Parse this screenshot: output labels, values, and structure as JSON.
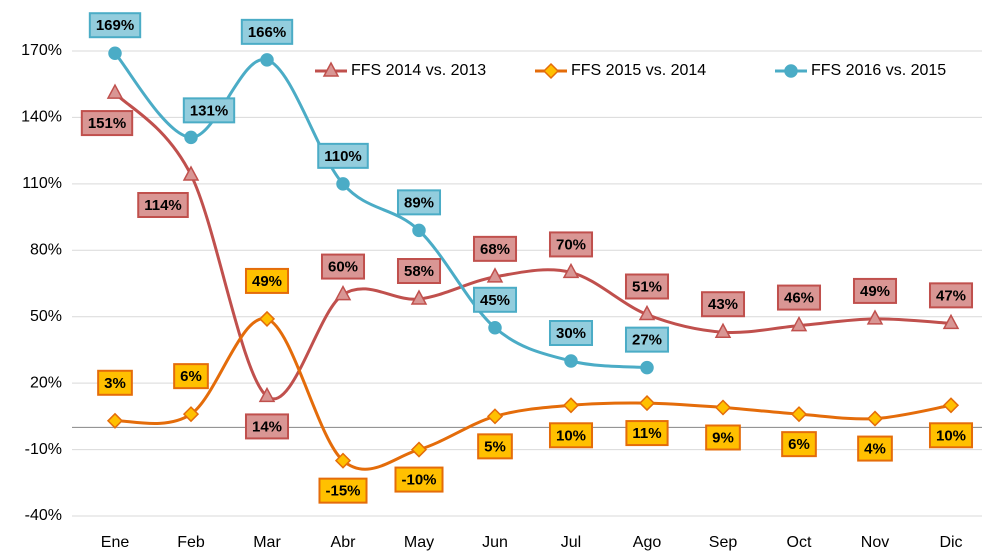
{
  "chart_data": {
    "type": "line",
    "categories": [
      "Ene",
      "Feb",
      "Mar",
      "Abr",
      "May",
      "Jun",
      "Jul",
      "Ago",
      "Sep",
      "Oct",
      "Nov",
      "Dic"
    ],
    "series": [
      {
        "name": "FFS 2014 vs. 2013",
        "color": "#c0504d",
        "marker": "triangle",
        "label_fill": "#d99694",
        "values": [
          151,
          114,
          14,
          60,
          58,
          68,
          70,
          51,
          43,
          46,
          49,
          47
        ],
        "value_labels": [
          "151%",
          "114%",
          "14%",
          "60%",
          "58%",
          "68%",
          "70%",
          "51%",
          "43%",
          "46%",
          "49%",
          "47%"
        ]
      },
      {
        "name": "FFS 2015 vs. 2014",
        "color": "#e46c0a",
        "marker": "diamond",
        "label_fill": "#ffc000",
        "values": [
          3,
          6,
          49,
          -15,
          -10,
          5,
          10,
          11,
          9,
          6,
          4,
          10
        ],
        "value_labels": [
          "3%",
          "6%",
          "49%",
          "-15%",
          "-10%",
          "5%",
          "10%",
          "11%",
          "9%",
          "6%",
          "4%",
          "10%"
        ]
      },
      {
        "name": "FFS 2016 vs. 2015",
        "color": "#4bacc6",
        "marker": "circle",
        "label_fill": "#93cddd",
        "values": [
          169,
          131,
          166,
          110,
          89,
          45,
          30,
          27,
          null,
          null,
          null,
          null
        ],
        "value_labels": [
          "169%",
          "131%",
          "166%",
          "110%",
          "89%",
          "45%",
          "30%",
          "27%",
          null,
          null,
          null,
          null
        ]
      }
    ],
    "ylim": [
      -40,
      170
    ],
    "yticks": [
      {
        "value": -40,
        "label": "-40%"
      },
      {
        "value": -10,
        "label": "-10%"
      },
      {
        "value": 20,
        "label": "20%"
      },
      {
        "value": 50,
        "label": "50%"
      },
      {
        "value": 80,
        "label": "80%"
      },
      {
        "value": 110,
        "label": "110%"
      },
      {
        "value": 140,
        "label": "140%"
      },
      {
        "value": 170,
        "label": "170%"
      }
    ],
    "grid": true,
    "legend": "top-right"
  }
}
